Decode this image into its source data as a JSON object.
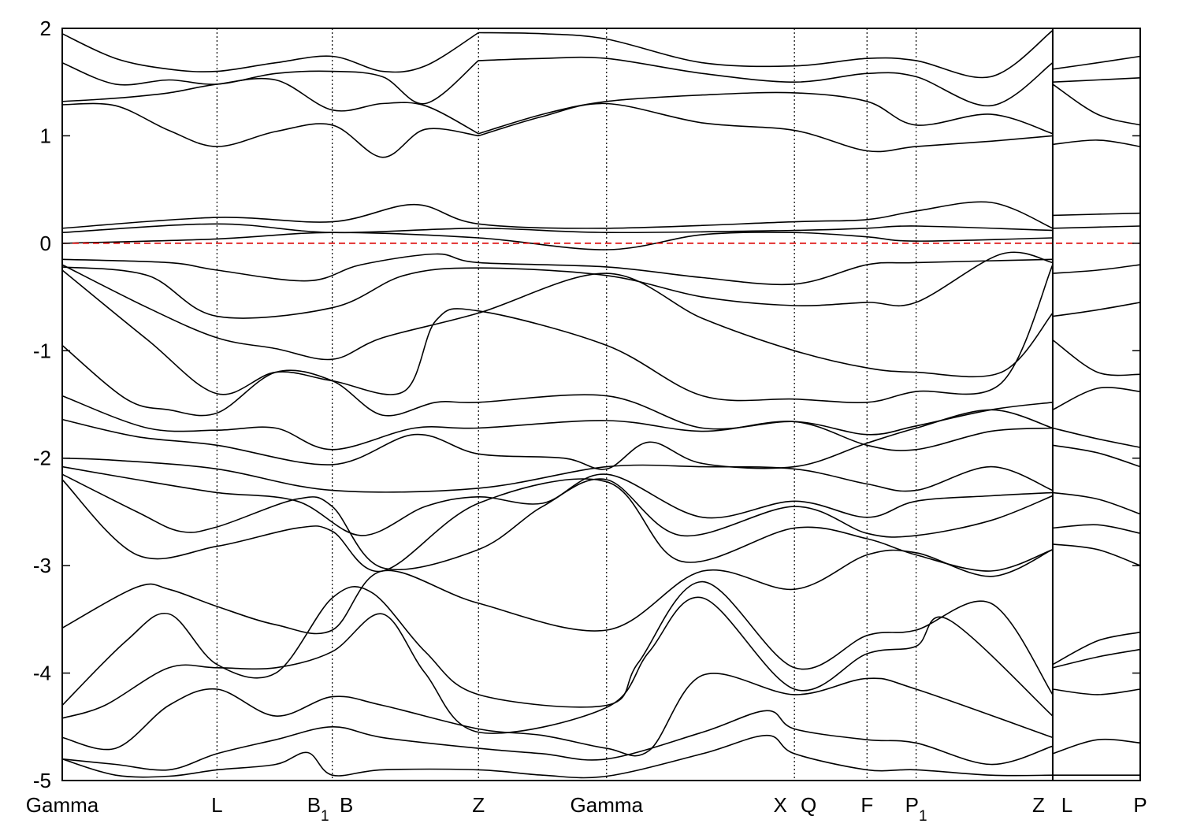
{
  "chart_data": {
    "type": "line",
    "title": "",
    "xlabel": "",
    "ylabel": "",
    "ylim": [
      -5,
      2
    ],
    "yticks": [
      2,
      1,
      0,
      -1,
      -2,
      -3,
      -4,
      -5
    ],
    "kpoints": [
      {
        "label": "Gamma",
        "sub": "",
        "x": 0
      },
      {
        "label": "L",
        "sub": "",
        "x": 1.45
      },
      {
        "label": "B",
        "sub": "1",
        "x": 2.53
      },
      {
        "label": "B",
        "sub": "",
        "x": 2.53
      },
      {
        "label": "Z",
        "sub": "",
        "x": 3.9
      },
      {
        "label": "Gamma",
        "sub": "",
        "x": 5.1
      },
      {
        "label": "X",
        "sub": "",
        "x": 6.86
      },
      {
        "label": "Q",
        "sub": "",
        "x": 6.86
      },
      {
        "label": "F",
        "sub": "",
        "x": 7.54
      },
      {
        "label": "P",
        "sub": "1",
        "x": 8.0
      },
      {
        "label": "Z",
        "sub": "",
        "x": 9.28
      },
      {
        "label": "L",
        "sub": "",
        "x": 9.28
      },
      {
        "label": "P",
        "sub": "",
        "x": 10.1
      }
    ],
    "segment_breaks": [
      9.28
    ],
    "fermi_level": {
      "y": 0,
      "color": "#dd0000"
    },
    "colors": {
      "bands": "#000000",
      "frame": "#000000",
      "vlines": "#000000"
    },
    "series": [
      {
        "x": [
          0,
          0.5,
          1.0,
          1.45,
          2.0,
          2.53,
          3.0,
          3.4,
          3.9
        ],
        "values": [
          1.95,
          1.72,
          1.62,
          1.6,
          1.68,
          1.74,
          1.6,
          1.65,
          1.96
        ]
      },
      {
        "x": [
          0,
          0.5,
          1.0,
          1.45,
          2.0,
          2.53,
          3.0,
          3.4,
          3.9
        ],
        "values": [
          1.68,
          1.48,
          1.52,
          1.48,
          1.58,
          1.6,
          1.55,
          1.3,
          1.7
        ]
      },
      {
        "x": [
          0,
          0.5,
          1.0,
          1.45,
          2.0,
          2.53,
          3.0,
          3.4,
          3.9
        ],
        "values": [
          1.32,
          1.35,
          1.4,
          1.48,
          1.52,
          1.24,
          1.3,
          1.28,
          1.02
        ]
      },
      {
        "x": [
          0,
          0.5,
          1.0,
          1.45,
          2.0,
          2.53,
          3.0,
          3.4,
          3.9
        ],
        "values": [
          1.29,
          1.28,
          1.05,
          0.9,
          1.04,
          1.1,
          0.8,
          1.06,
          1.0
        ]
      },
      {
        "x": [
          3.9,
          4.5,
          5.1,
          6.0,
          6.86,
          7.54,
          8.0,
          8.7,
          9.28
        ],
        "values": [
          1.96,
          1.95,
          1.9,
          1.68,
          1.65,
          1.72,
          1.7,
          1.55,
          1.98
        ]
      },
      {
        "x": [
          3.9,
          4.5,
          5.1,
          6.0,
          6.86,
          7.54,
          8.0,
          8.7,
          9.28
        ],
        "values": [
          1.7,
          1.72,
          1.72,
          1.58,
          1.5,
          1.58,
          1.55,
          1.28,
          1.68
        ]
      },
      {
        "x": [
          3.9,
          4.5,
          5.1,
          6.0,
          6.86,
          7.54,
          8.0,
          8.7,
          9.28
        ],
        "values": [
          1.02,
          1.2,
          1.32,
          1.38,
          1.4,
          1.32,
          1.1,
          1.2,
          1.02
        ]
      },
      {
        "x": [
          3.9,
          4.5,
          5.1,
          6.0,
          6.86,
          7.54,
          8.0,
          8.7,
          9.28
        ],
        "values": [
          1.0,
          1.18,
          1.3,
          1.12,
          1.05,
          0.86,
          0.9,
          0.95,
          1.0
        ]
      },
      {
        "x": [
          9.28,
          9.7,
          10.1
        ],
        "values": [
          1.62,
          1.68,
          1.74
        ]
      },
      {
        "x": [
          9.28,
          9.7,
          10.1
        ],
        "values": [
          1.5,
          1.52,
          1.54
        ]
      },
      {
        "x": [
          9.28,
          9.7,
          10.1
        ],
        "values": [
          1.48,
          1.2,
          1.1
        ]
      },
      {
        "x": [
          9.28,
          9.7,
          10.1
        ],
        "values": [
          0.92,
          0.96,
          0.9
        ]
      },
      {
        "x": [
          0,
          1.45,
          2.53,
          3.3,
          3.9,
          5.1,
          6.86,
          7.54,
          8.0,
          8.7,
          9.28
        ],
        "values": [
          0.14,
          0.24,
          0.2,
          0.36,
          0.18,
          0.14,
          0.2,
          0.22,
          0.3,
          0.38,
          0.14
        ]
      },
      {
        "x": [
          0,
          1.45,
          2.53,
          3.9,
          5.1,
          6.86,
          7.54,
          8.0,
          9.28
        ],
        "values": [
          0.1,
          0.18,
          0.1,
          0.14,
          0.1,
          0.12,
          0.14,
          0.16,
          0.12
        ]
      },
      {
        "x": [
          9.28,
          10.1
        ],
        "values": [
          0.26,
          0.28
        ]
      },
      {
        "x": [
          9.28,
          10.1
        ],
        "values": [
          0.14,
          0.16
        ]
      },
      {
        "x": [
          0,
          1.45,
          2.53,
          3.9,
          5.1,
          6.0,
          6.86,
          7.54,
          8.0,
          9.28
        ],
        "values": [
          0.0,
          0.04,
          0.1,
          0.05,
          -0.06,
          0.08,
          0.1,
          0.06,
          0.02,
          0.05
        ]
      },
      {
        "x": [
          0,
          1.0,
          1.45,
          2.3,
          2.8,
          3.5,
          3.9,
          5.1,
          6.0,
          6.86,
          7.54,
          8.0,
          9.28
        ],
        "values": [
          -0.15,
          -0.18,
          -0.25,
          -0.35,
          -0.2,
          -0.1,
          -0.18,
          -0.22,
          -0.32,
          -0.38,
          -0.2,
          -0.18,
          -0.15
        ]
      },
      {
        "x": [
          0,
          0.8,
          1.45,
          2.53,
          3.2,
          3.9,
          5.1,
          6.0,
          6.86,
          7.54,
          8.0,
          8.8,
          9.28
        ],
        "values": [
          -0.22,
          -0.3,
          -0.68,
          -0.6,
          -0.3,
          -0.23,
          -0.3,
          -0.5,
          -0.58,
          -0.55,
          -0.55,
          -0.1,
          -0.18
        ]
      },
      {
        "x": [
          9.28,
          9.7,
          10.1
        ],
        "values": [
          -0.28,
          -0.25,
          -0.2
        ]
      },
      {
        "x": [
          9.28,
          9.7,
          10.1
        ],
        "values": [
          -0.68,
          -0.62,
          -0.55
        ]
      },
      {
        "x": [
          0,
          0.8,
          1.45,
          2.0,
          2.53,
          3.0,
          3.9,
          5.1,
          6.0,
          6.86,
          7.54,
          8.0,
          8.8,
          9.28
        ],
        "values": [
          -0.2,
          -0.6,
          -0.88,
          -0.98,
          -1.08,
          -0.88,
          -0.65,
          -0.28,
          -0.7,
          -1.0,
          -1.16,
          -1.2,
          -1.2,
          -0.65
        ]
      },
      {
        "x": [
          0,
          0.8,
          1.45,
          2.0,
          2.53,
          3.2,
          3.5,
          3.9,
          5.1,
          6.0,
          6.86,
          7.54,
          8.0,
          8.8,
          9.28
        ],
        "values": [
          -0.25,
          -0.9,
          -1.4,
          -1.2,
          -1.28,
          -1.38,
          -0.72,
          -0.63,
          -0.95,
          -1.42,
          -1.45,
          -1.48,
          -1.38,
          -1.3,
          -0.2
        ]
      },
      {
        "x": [
          0,
          0.6,
          1.0,
          1.45,
          2.0,
          2.53,
          3.0,
          3.5,
          3.9,
          5.1,
          6.0,
          6.86,
          7.54,
          8.0,
          8.7,
          9.28
        ],
        "values": [
          -0.95,
          -1.45,
          -1.55,
          -1.58,
          -1.2,
          -1.28,
          -1.6,
          -1.48,
          -1.48,
          -1.42,
          -1.72,
          -1.66,
          -1.78,
          -1.7,
          -1.55,
          -1.48
        ]
      },
      {
        "x": [
          9.28,
          9.7,
          10.1
        ],
        "values": [
          -0.9,
          -1.2,
          -1.22
        ]
      },
      {
        "x": [
          9.28,
          9.7,
          10.1
        ],
        "values": [
          -1.55,
          -1.35,
          -1.38
        ]
      },
      {
        "x": [
          0,
          0.8,
          1.45,
          2.0,
          2.53,
          3.3,
          3.9,
          5.1,
          6.0,
          6.86,
          7.54,
          8.0,
          8.7,
          9.28
        ],
        "values": [
          -1.42,
          -1.72,
          -1.74,
          -1.72,
          -1.92,
          -1.72,
          -1.72,
          -1.65,
          -1.75,
          -1.66,
          -1.88,
          -1.92,
          -1.75,
          -1.72
        ]
      },
      {
        "x": [
          0,
          0.7,
          1.45,
          2.53,
          3.3,
          3.9,
          4.7,
          5.1,
          5.5,
          6.0,
          6.86,
          7.54,
          8.0,
          8.7,
          9.28
        ],
        "values": [
          -1.64,
          -1.8,
          -1.88,
          -2.06,
          -1.78,
          -1.96,
          -2.0,
          -2.1,
          -1.85,
          -2.05,
          -2.08,
          -1.86,
          -1.72,
          -1.55,
          -1.72
        ]
      },
      {
        "x": [
          9.28,
          9.7,
          10.1
        ],
        "values": [
          -1.72,
          -1.82,
          -1.9
        ]
      },
      {
        "x": [
          9.28,
          9.7,
          10.1
        ],
        "values": [
          -1.88,
          -1.95,
          -2.08
        ]
      },
      {
        "x": [
          0,
          0.5,
          1.45,
          2.53,
          3.9,
          5.1,
          6.0,
          6.86,
          7.54,
          8.0,
          8.7,
          9.28
        ],
        "values": [
          -2.0,
          -2.02,
          -2.1,
          -2.3,
          -2.28,
          -2.08,
          -2.08,
          -2.1,
          -2.24,
          -2.3,
          -2.08,
          -2.3
        ]
      },
      {
        "x": [
          0,
          0.7,
          1.45,
          2.2,
          2.8,
          3.4,
          3.9,
          4.5,
          5.1,
          6.0,
          6.86,
          7.54,
          8.0,
          8.7,
          9.28
        ],
        "values": [
          -2.08,
          -2.2,
          -2.32,
          -2.4,
          -2.72,
          -2.45,
          -2.36,
          -2.42,
          -2.15,
          -2.55,
          -2.4,
          -2.55,
          -2.4,
          -2.35,
          -2.32
        ]
      },
      {
        "x": [
          0,
          0.7,
          1.1,
          1.45,
          2.2,
          2.53,
          3.0,
          3.9,
          4.5,
          5.1,
          5.8,
          6.86,
          7.54,
          8.0,
          8.7,
          9.28
        ],
        "values": [
          -2.15,
          -2.5,
          -2.68,
          -2.64,
          -2.38,
          -2.45,
          -3.02,
          -2.85,
          -2.45,
          -2.2,
          -2.72,
          -2.45,
          -2.7,
          -2.72,
          -2.58,
          -2.35
        ]
      },
      {
        "x": [
          0,
          0.7,
          1.45,
          2.2,
          2.53,
          3.0,
          3.9,
          5.1,
          5.8,
          6.86,
          7.54,
          8.0,
          8.7,
          9.28
        ],
        "values": [
          -2.2,
          -2.9,
          -2.82,
          -2.65,
          -2.68,
          -3.05,
          -2.42,
          -2.22,
          -2.96,
          -2.65,
          -2.75,
          -2.9,
          -3.05,
          -2.85
        ]
      },
      {
        "x": [
          9.28,
          9.7,
          10.1
        ],
        "values": [
          -2.32,
          -2.38,
          -2.52
        ]
      },
      {
        "x": [
          9.28,
          9.7,
          10.1
        ],
        "values": [
          -2.65,
          -2.62,
          -2.7
        ]
      },
      {
        "x": [
          9.28,
          9.7,
          10.1
        ],
        "values": [
          -2.8,
          -2.85,
          -3.0
        ]
      },
      {
        "x": [
          0,
          0.7,
          1.0,
          1.45,
          2.0,
          2.53,
          3.0,
          3.9,
          5.1,
          6.0,
          6.86,
          7.54,
          8.0,
          8.7,
          9.28
        ],
        "values": [
          -3.58,
          -3.2,
          -3.22,
          -3.38,
          -3.55,
          -3.6,
          -3.05,
          -3.35,
          -3.6,
          -3.05,
          -3.22,
          -2.9,
          -2.88,
          -3.1,
          -2.85
        ]
      },
      {
        "x": [
          0,
          0.6,
          1.0,
          1.45,
          2.0,
          2.53,
          2.9,
          3.4,
          3.9,
          5.1,
          5.4,
          6.0,
          6.86,
          7.54,
          8.0,
          8.7,
          9.28
        ],
        "values": [
          -4.3,
          -3.7,
          -3.45,
          -3.92,
          -4.0,
          -3.3,
          -3.25,
          -3.8,
          -4.2,
          -4.3,
          -3.9,
          -3.15,
          -3.95,
          -3.65,
          -3.6,
          -3.35,
          -4.2
        ]
      },
      {
        "x": [
          0,
          0.4,
          1.0,
          1.45,
          2.0,
          2.53,
          3.0,
          3.4,
          3.9,
          5.1,
          5.5,
          6.0,
          6.86,
          7.54,
          8.0,
          8.3,
          9.28
        ],
        "values": [
          -4.42,
          -4.3,
          -3.95,
          -3.95,
          -3.95,
          -3.8,
          -3.45,
          -4.0,
          -4.55,
          -4.32,
          -3.8,
          -3.3,
          -4.15,
          -3.82,
          -3.75,
          -3.5,
          -4.4
        ]
      },
      {
        "x": [
          0,
          0.5,
          1.0,
          1.45,
          2.0,
          2.53,
          3.0,
          3.9,
          4.5,
          5.1,
          5.5,
          6.0,
          6.86,
          7.54,
          8.0,
          9.28
        ],
        "values": [
          -4.6,
          -4.7,
          -4.3,
          -4.15,
          -4.4,
          -4.22,
          -4.3,
          -4.52,
          -4.58,
          -4.7,
          -4.72,
          -4.02,
          -4.2,
          -4.05,
          -4.15,
          -4.6
        ]
      },
      {
        "x": [
          9.28,
          9.7,
          10.1
        ],
        "values": [
          -3.92,
          -3.7,
          -3.62
        ]
      },
      {
        "x": [
          9.28,
          9.7,
          10.1
        ],
        "values": [
          -3.95,
          -3.85,
          -3.78
        ]
      },
      {
        "x": [
          9.28,
          9.7,
          10.1
        ],
        "values": [
          -4.15,
          -4.2,
          -4.15
        ]
      },
      {
        "x": [
          0,
          0.5,
          1.0,
          1.45,
          2.0,
          2.53,
          3.0,
          3.9,
          4.5,
          5.1,
          6.0,
          6.6,
          6.86,
          7.54,
          8.0,
          8.7,
          9.28
        ],
        "values": [
          -4.8,
          -4.85,
          -4.9,
          -4.75,
          -4.62,
          -4.5,
          -4.6,
          -4.7,
          -4.75,
          -4.8,
          -4.55,
          -4.35,
          -4.52,
          -4.62,
          -4.65,
          -4.85,
          -4.68
        ]
      },
      {
        "x": [
          0,
          0.5,
          1.0,
          1.45,
          2.0,
          2.3,
          2.53,
          3.0,
          3.9,
          4.5,
          5.1,
          6.0,
          6.6,
          6.86,
          7.54,
          8.0,
          8.7,
          9.28
        ],
        "values": [
          -4.8,
          -4.95,
          -4.96,
          -4.9,
          -4.85,
          -4.74,
          -4.95,
          -4.9,
          -4.9,
          -4.95,
          -4.96,
          -4.75,
          -4.58,
          -4.75,
          -4.9,
          -4.9,
          -4.95,
          -4.95
        ]
      },
      {
        "x": [
          9.28,
          9.7,
          10.1
        ],
        "values": [
          -4.75,
          -4.62,
          -4.65
        ]
      },
      {
        "x": [
          9.28,
          10.1
        ],
        "values": [
          -4.95,
          -4.95
        ]
      }
    ]
  }
}
